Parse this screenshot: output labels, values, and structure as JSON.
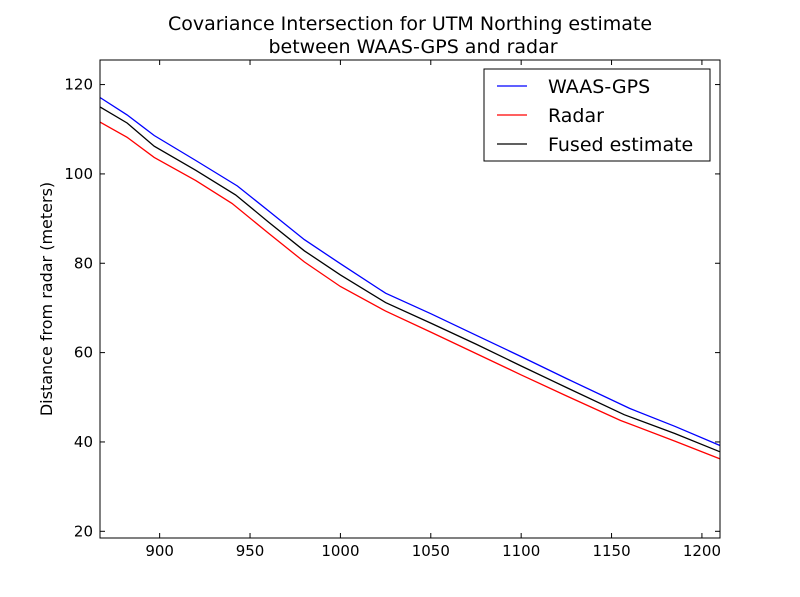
{
  "chart_data": {
    "type": "line",
    "title": [
      "Covariance Intersection for UTM Northing estimate",
      "between WAAS-GPS and radar"
    ],
    "xlabel": "",
    "ylabel": "Distance from radar (meters)",
    "xlim": [
      867,
      1210
    ],
    "ylim": [
      18.5,
      125.5
    ],
    "xticks": [
      "900",
      "950",
      "1000",
      "1050",
      "1100",
      "1150",
      "1200"
    ],
    "yticks": [
      "20",
      "40",
      "60",
      "80",
      "100",
      "120"
    ],
    "grid": false,
    "legend_position": "top-right",
    "series": [
      {
        "name": "WAAS-GPS",
        "color": "#0000ff",
        "x": [
          867,
          882,
          897,
          920,
          943,
          960,
          980,
          1000,
          1025,
          1050,
          1075,
          1100,
          1125,
          1160,
          1185,
          1210
        ],
        "y": [
          117.1,
          113.2,
          108.6,
          103.0,
          97.3,
          91.8,
          85.3,
          79.9,
          73.3,
          68.7,
          63.9,
          59.1,
          54.2,
          47.5,
          43.5,
          39.2
        ]
      },
      {
        "name": "Radar",
        "color": "#ff0000",
        "x": [
          867,
          882,
          897,
          920,
          940,
          960,
          980,
          1000,
          1025,
          1050,
          1075,
          1100,
          1125,
          1155,
          1185,
          1210
        ],
        "y": [
          111.6,
          108.2,
          103.7,
          98.5,
          93.4,
          86.8,
          80.3,
          74.8,
          69.3,
          64.6,
          59.8,
          55.0,
          50.3,
          44.8,
          40.2,
          36.2
        ]
      },
      {
        "name": "Fused estimate",
        "color": "#000000",
        "x": [
          867,
          882,
          897,
          920,
          942,
          960,
          980,
          1000,
          1025,
          1050,
          1075,
          1100,
          1125,
          1157,
          1185,
          1210
        ],
        "y": [
          115.0,
          111.4,
          106.2,
          100.8,
          95.3,
          89.3,
          82.8,
          77.4,
          71.2,
          66.6,
          61.9,
          57.0,
          52.2,
          46.1,
          41.9,
          37.8
        ]
      }
    ]
  }
}
